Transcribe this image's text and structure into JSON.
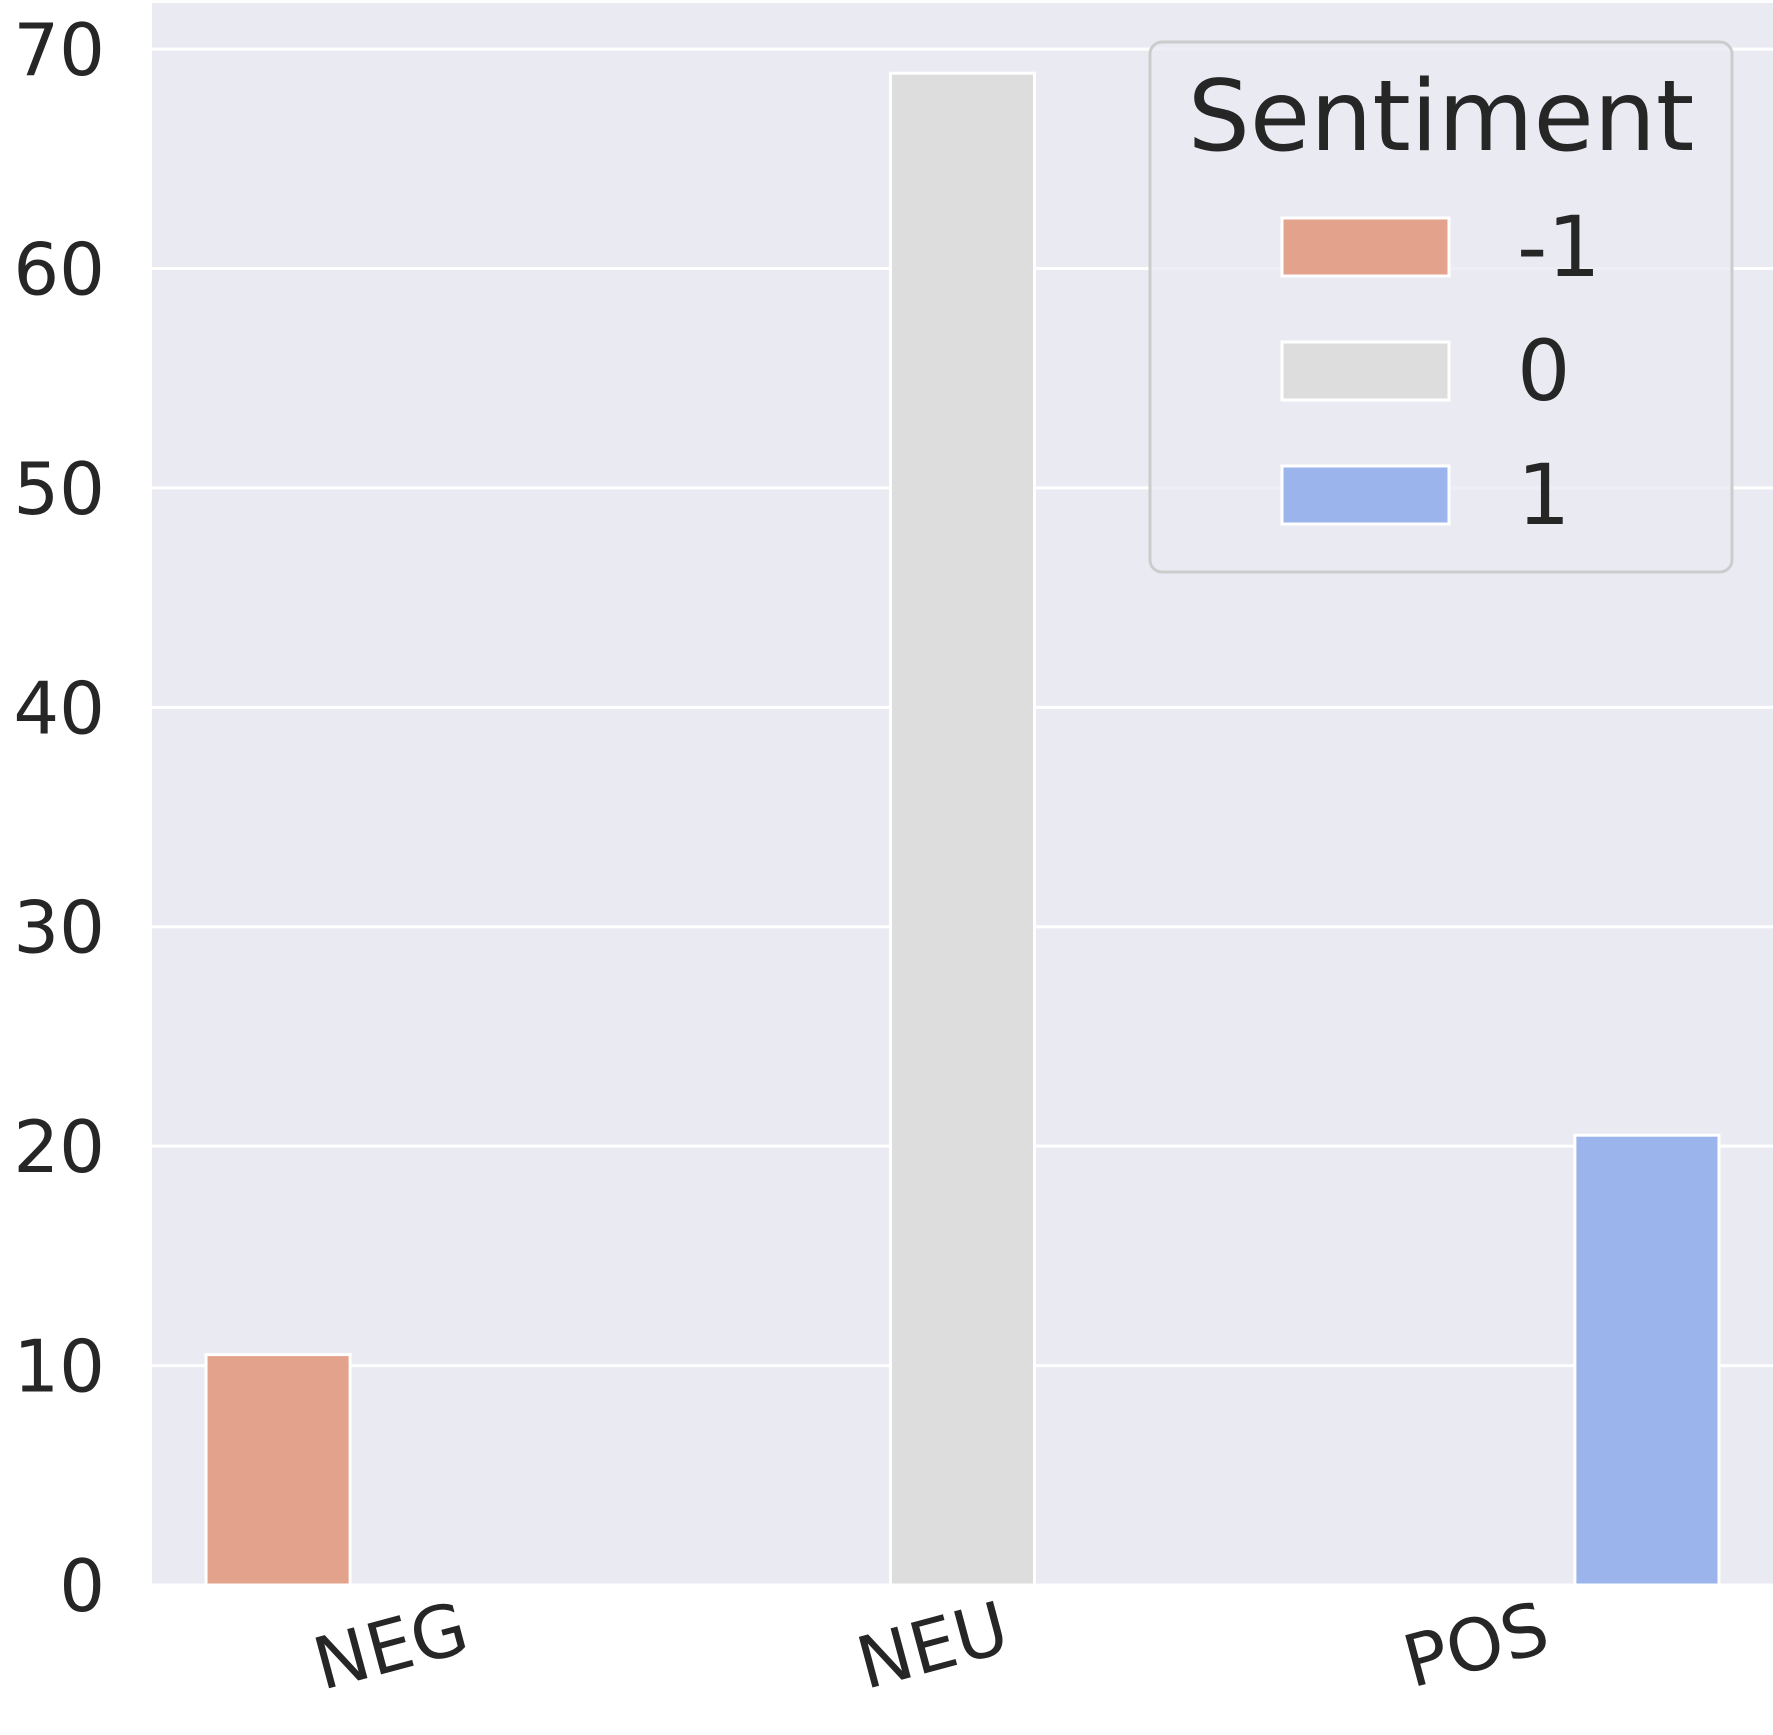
{
  "chart_data": {
    "type": "bar",
    "categories": [
      "NEG",
      "NEU",
      "POS"
    ],
    "series": [
      {
        "name": "-1",
        "values": [
          10.5,
          null,
          null
        ],
        "color": "#e3a28b"
      },
      {
        "name": "0",
        "values": [
          null,
          68.9,
          null
        ],
        "color": "#dcdddc"
      },
      {
        "name": "1",
        "values": [
          null,
          null,
          20.5
        ],
        "color": "#9bb4ec"
      }
    ],
    "y_ticks": [
      "0",
      "10",
      "20",
      "30",
      "40",
      "50",
      "60",
      "70"
    ],
    "ylim": [
      0,
      72.1
    ],
    "grid": true,
    "legend": {
      "title": "Sentiment",
      "placement": "top-right"
    },
    "background": "#eaeaf2"
  }
}
